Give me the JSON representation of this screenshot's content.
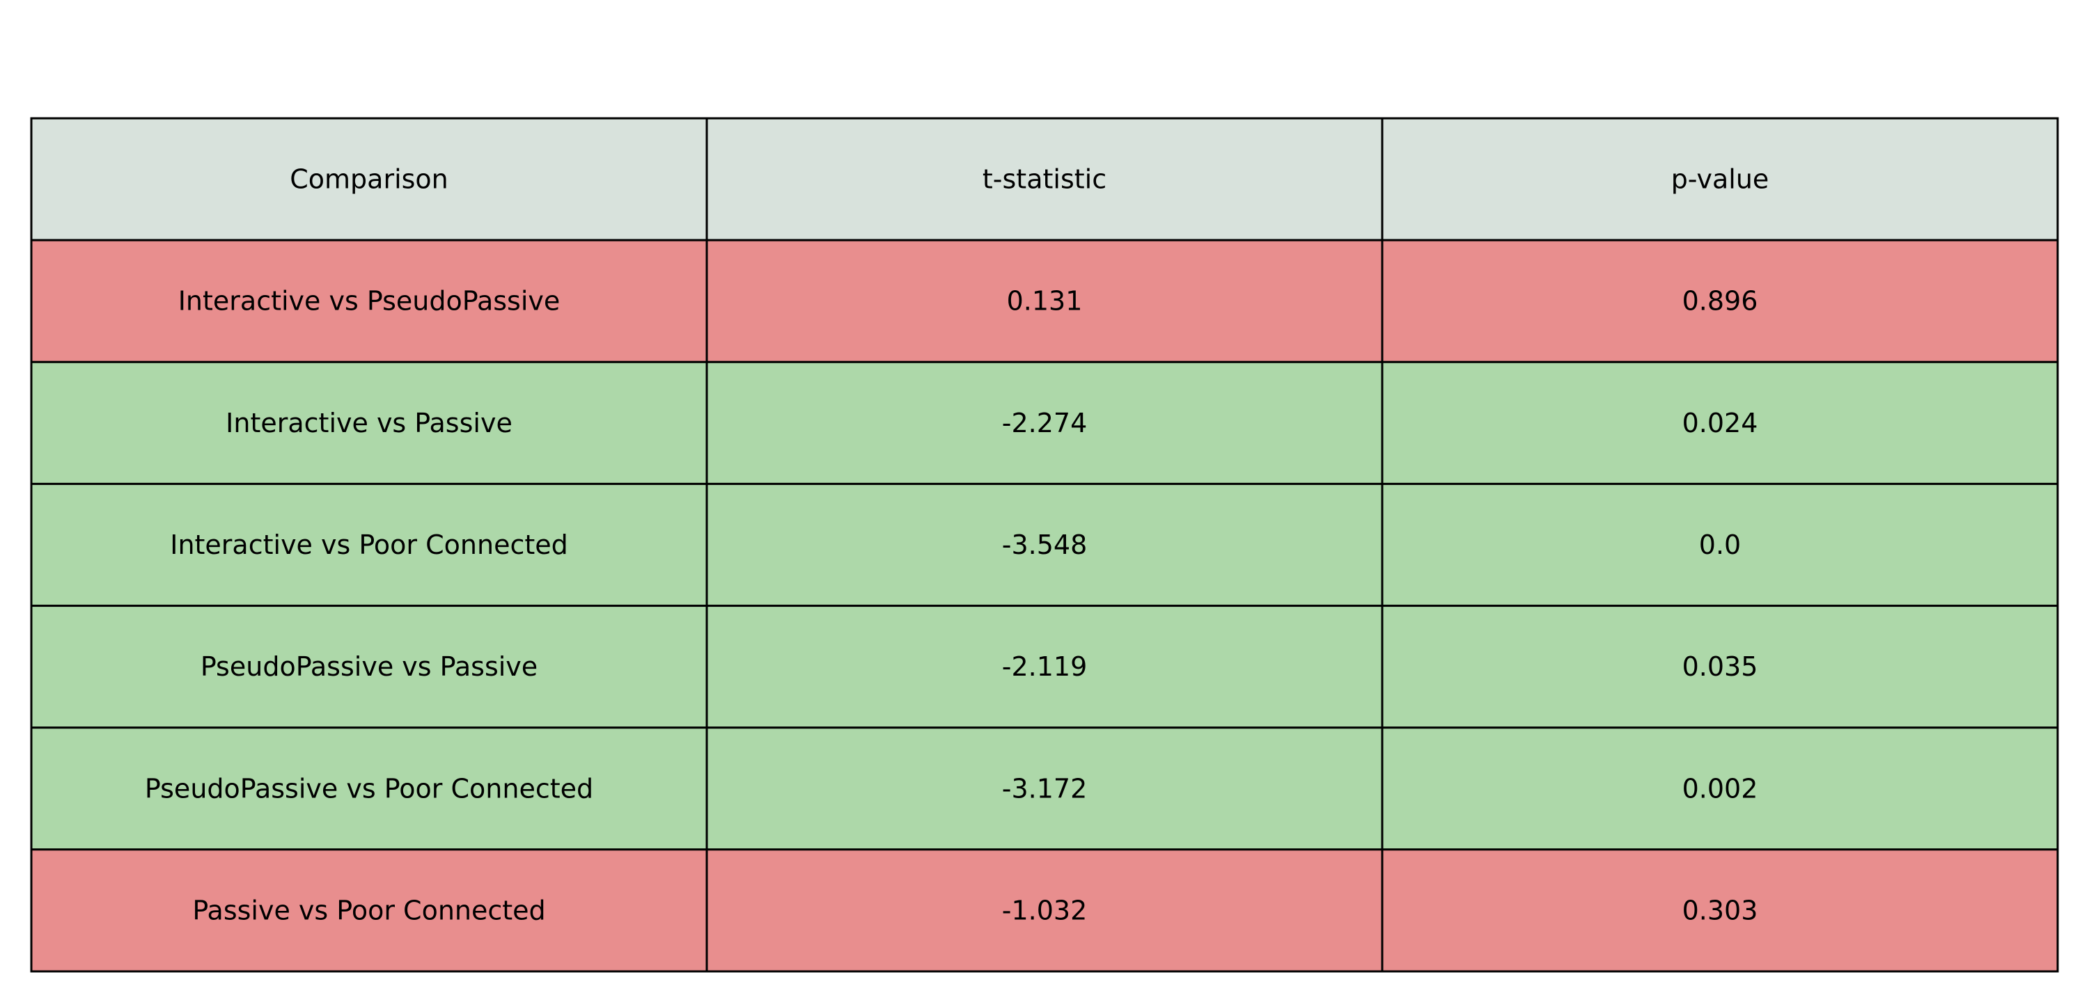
{
  "chart_data": {
    "type": "table",
    "columns": [
      "Comparison",
      "t-statistic",
      "p-value"
    ],
    "rows": [
      {
        "comparison": "Interactive vs PseudoPassive",
        "t_statistic": "0.131",
        "p_value": "0.896",
        "significant": false
      },
      {
        "comparison": "Interactive vs Passive",
        "t_statistic": "-2.274",
        "p_value": "0.024",
        "significant": true
      },
      {
        "comparison": "Interactive vs Poor Connected",
        "t_statistic": "-3.548",
        "p_value": "0.0",
        "significant": true
      },
      {
        "comparison": "PseudoPassive vs Passive",
        "t_statistic": "-2.119",
        "p_value": "0.035",
        "significant": true
      },
      {
        "comparison": "PseudoPassive vs Poor Connected",
        "t_statistic": "-3.172",
        "p_value": "0.002",
        "significant": true
      },
      {
        "comparison": "Passive vs Poor Connected",
        "t_statistic": "-1.032",
        "p_value": "0.303",
        "significant": false
      }
    ]
  },
  "colors": {
    "header": "#d8e2dc",
    "significant": "#add8a9",
    "not_significant": "#e88e8e",
    "border": "#000000",
    "text": "#000000"
  }
}
